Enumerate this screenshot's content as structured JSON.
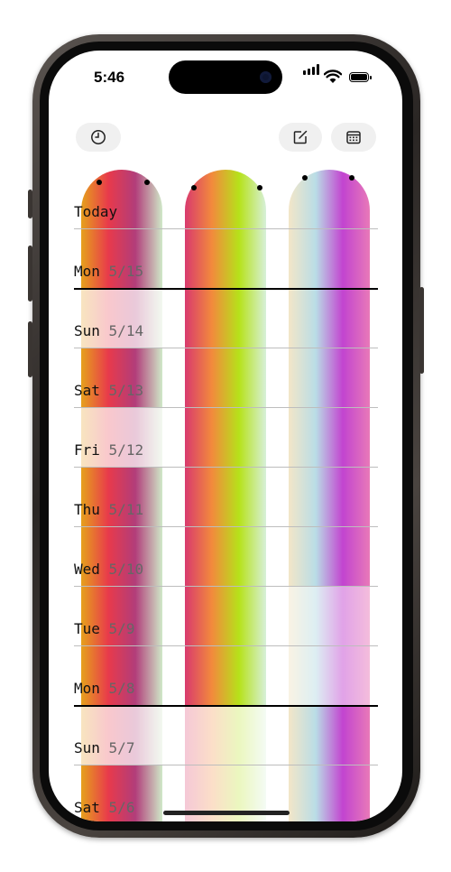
{
  "status_bar": {
    "time": "5:46",
    "icons": [
      "cellular-signal-icon",
      "wifi-icon",
      "battery-icon"
    ]
  },
  "toolbar": {
    "left_icon": "history-clock-icon",
    "right_icons": [
      "compose-icon",
      "calendar-icon"
    ]
  },
  "days": [
    {
      "day": "Today",
      "date": ""
    },
    {
      "day": "Mon",
      "date": "5/15"
    },
    {
      "day": "Sun",
      "date": "5/14"
    },
    {
      "day": "Sat",
      "date": "5/13"
    },
    {
      "day": "Fri",
      "date": "5/12"
    },
    {
      "day": "Thu",
      "date": "5/11"
    },
    {
      "day": "Wed",
      "date": "5/10"
    },
    {
      "day": "Tue",
      "date": "5/9"
    },
    {
      "day": "Mon",
      "date": "5/8"
    },
    {
      "day": "Sun",
      "date": "5/7"
    },
    {
      "day": "Sat",
      "date": "5/6"
    }
  ],
  "columns": [
    {
      "colors": [
        "#e6a11c",
        "#e83a4b",
        "#b23d7a",
        "#cfe9c8"
      ]
    },
    {
      "colors": [
        "#d93a6e",
        "#f28a3c",
        "#b6e21a",
        "#d7f0d9"
      ]
    },
    {
      "colors": [
        "#f3e6c8",
        "#b9dde6",
        "#c244d0",
        "#e879b8"
      ]
    }
  ]
}
